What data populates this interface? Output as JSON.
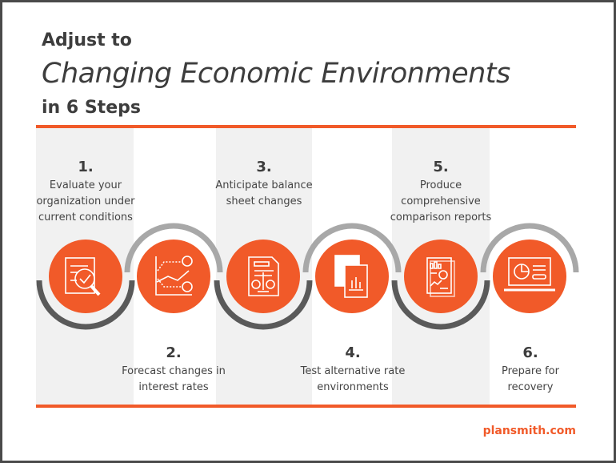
{
  "title": {
    "line1": "Adjust to",
    "line2": "Changing Economic Environments",
    "line3": "in 6 Steps"
  },
  "steps": [
    {
      "number": "1.",
      "text": "Evaluate your organization under current conditions",
      "icon": "document-magnifier-check-icon"
    },
    {
      "number": "2.",
      "text": "Forecast changes in interest rates",
      "icon": "chart-question-forecast-icon"
    },
    {
      "number": "3.",
      "text": "Anticipate balance sheet changes",
      "icon": "document-balance-scale-icon"
    },
    {
      "number": "4.",
      "text": "Test alternative rate environments",
      "icon": "documents-bar-chart-icon"
    },
    {
      "number": "5.",
      "text": "Produce comprehensive comparison reports",
      "icon": "report-charts-icon"
    },
    {
      "number": "6.",
      "text": "Prepare for recovery",
      "icon": "laptop-pie-chart-icon"
    }
  ],
  "footer": {
    "site": "plansmith.com"
  },
  "colors": {
    "accent": "#f15a29",
    "text": "#3d3d3d",
    "band": "#f1f1f1",
    "arc_dark": "#5a5a5a",
    "arc_light": "#a8a8a8"
  }
}
